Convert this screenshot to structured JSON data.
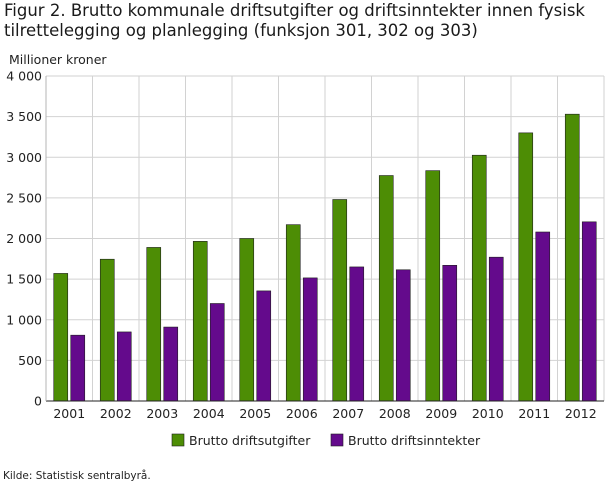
{
  "title": "Figur 2. Brutto kommunale driftsutgifter og driftsinntekter innen fysisk tilrettelegging og planlegging (funksjon 301, 302 og 303)",
  "source": "Kilde: Statistisk sentralbyrå.",
  "colors": {
    "series0": "#4d8d05",
    "series1": "#640a8c",
    "grid": "#d2d2d2",
    "axis": "#b4b4b4"
  },
  "chart_data": {
    "type": "bar",
    "title": "Figur 2. Brutto kommunale driftsutgifter og driftsinntekter innen fysisk tilrettelegging og planlegging (funksjon 301, 302 og 303)",
    "ylabel": "Millioner kroner",
    "xlabel": "",
    "ylim": [
      0,
      4000
    ],
    "yticks": [
      0,
      500,
      1000,
      1500,
      2000,
      2500,
      3000,
      3500,
      4000
    ],
    "ytick_labels": [
      "0",
      "500",
      "1 000",
      "1 500",
      "2 000",
      "2 500",
      "3 000",
      "3 500",
      "4 000"
    ],
    "grid": true,
    "legend": "bottom",
    "categories": [
      "2001",
      "2002",
      "2003",
      "2004",
      "2005",
      "2006",
      "2007",
      "2008",
      "2009",
      "2010",
      "2011",
      "2012"
    ],
    "series": [
      {
        "name": "Brutto driftsutgifter",
        "values": [
          1570,
          1745,
          1890,
          1965,
          2000,
          2170,
          2480,
          2775,
          2835,
          3025,
          3300,
          3530
        ]
      },
      {
        "name": "Brutto driftsinntekter",
        "values": [
          810,
          850,
          910,
          1200,
          1355,
          1515,
          1650,
          1615,
          1670,
          1770,
          2080,
          2205
        ]
      }
    ]
  }
}
